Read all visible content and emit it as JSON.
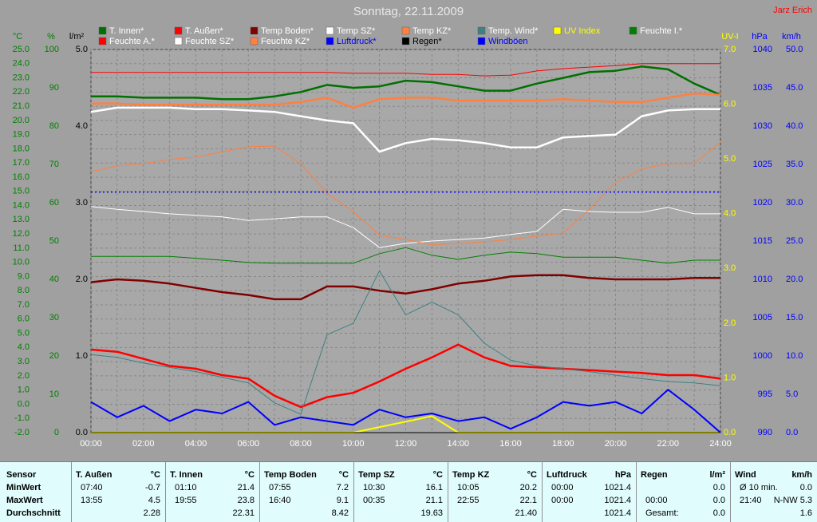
{
  "chart_data": {
    "type": "line",
    "title": "Sonntag, 22.11.2009",
    "author": "Jarz Erich",
    "grid": true,
    "x": [
      "00:00",
      "01:00",
      "02:00",
      "03:00",
      "04:00",
      "05:00",
      "06:00",
      "07:00",
      "08:00",
      "09:00",
      "10:00",
      "11:00",
      "12:00",
      "13:00",
      "14:00",
      "15:00",
      "16:00",
      "17:00",
      "18:00",
      "19:00",
      "20:00",
      "21:00",
      "22:00",
      "23:00",
      "24:00"
    ],
    "axes": {
      "temp": {
        "title": "°C",
        "color": "#008000",
        "ylim": [
          -2,
          25
        ],
        "yticks": [
          {
            "value": -2,
            "label": "-2.0"
          },
          {
            "value": -1,
            "label": "-1.0"
          },
          {
            "value": 0,
            "label": "0.0"
          },
          {
            "value": 1,
            "label": "1.0"
          },
          {
            "value": 2,
            "label": "2.0"
          },
          {
            "value": 3,
            "label": "3.0"
          },
          {
            "value": 4,
            "label": "4.0"
          },
          {
            "value": 5,
            "label": "5.0"
          },
          {
            "value": 6,
            "label": "6.0"
          },
          {
            "value": 7,
            "label": "7.0"
          },
          {
            "value": 8,
            "label": "8.0"
          },
          {
            "value": 9,
            "label": "9.0"
          },
          {
            "value": 10,
            "label": "10.0"
          },
          {
            "value": 11,
            "label": "11.0"
          },
          {
            "value": 12,
            "label": "12.0"
          },
          {
            "value": 13,
            "label": "13.0"
          },
          {
            "value": 14,
            "label": "14.0"
          },
          {
            "value": 15,
            "label": "15.0"
          },
          {
            "value": 16,
            "label": "16.0"
          },
          {
            "value": 17,
            "label": "17.0"
          },
          {
            "value": 18,
            "label": "18.0"
          },
          {
            "value": 19,
            "label": "19.0"
          },
          {
            "value": 20,
            "label": "20.0"
          },
          {
            "value": 21,
            "label": "21.0"
          },
          {
            "value": 22,
            "label": "22.0"
          },
          {
            "value": 23,
            "label": "23.0"
          },
          {
            "value": 24,
            "label": "24.0"
          },
          {
            "value": 25,
            "label": "25.0"
          }
        ]
      },
      "hum": {
        "title": "%",
        "color": "#008000",
        "ylim": [
          0,
          100
        ],
        "yticks": [
          0,
          10,
          20,
          30,
          40,
          50,
          60,
          70,
          80,
          90,
          100
        ]
      },
      "rain": {
        "title": "l/m²",
        "color": "#000000",
        "ylim": [
          0,
          5
        ],
        "yticks": [
          {
            "value": 0,
            "label": "0.0"
          },
          {
            "value": 1,
            "label": "1.0"
          },
          {
            "value": 2,
            "label": "2.0"
          },
          {
            "value": 3,
            "label": "3.0"
          },
          {
            "value": 4,
            "label": "4.0"
          },
          {
            "value": 5,
            "label": "5.0"
          }
        ]
      },
      "uv": {
        "title": "UV-I",
        "color": "#ffff00",
        "ylim": [
          0,
          7
        ],
        "yticks": [
          {
            "value": 0,
            "label": "0.0"
          },
          {
            "value": 1,
            "label": "1.0"
          },
          {
            "value": 2,
            "label": "2.0"
          },
          {
            "value": 3,
            "label": "3.0"
          },
          {
            "value": 4,
            "label": "4.0"
          },
          {
            "value": 5,
            "label": "5.0"
          },
          {
            "value": 6,
            "label": "6.0"
          },
          {
            "value": 7,
            "label": "7.0"
          }
        ]
      },
      "press": {
        "title": "hPa",
        "color": "#0000ff",
        "ylim": [
          990,
          1040
        ],
        "yticks": [
          990,
          995,
          1000,
          1005,
          1010,
          1015,
          1020,
          1025,
          1030,
          1035,
          1040
        ]
      },
      "wind": {
        "title": "km/h",
        "color": "#0000ff",
        "ylim": [
          0,
          50
        ],
        "yticks": [
          {
            "value": 0,
            "label": "0.0"
          },
          {
            "value": 5,
            "label": "5.0"
          },
          {
            "value": 10,
            "label": "10.0"
          },
          {
            "value": 15,
            "label": "15.0"
          },
          {
            "value": 20,
            "label": "20.0"
          },
          {
            "value": 25,
            "label": "25.0"
          },
          {
            "value": 30,
            "label": "30.0"
          },
          {
            "value": 35,
            "label": "35.0"
          },
          {
            "value": 40,
            "label": "40.0"
          },
          {
            "value": 45,
            "label": "45.0"
          },
          {
            "value": 50,
            "label": "50.0"
          }
        ]
      }
    },
    "series": [
      {
        "name": "T. Innen*",
        "color": "#007000",
        "legend_color": "#ffffff",
        "axis": "temp",
        "line_width": 2.5,
        "values": [
          21.7,
          21.7,
          21.6,
          21.6,
          21.6,
          21.5,
          21.5,
          21.7,
          22.0,
          22.5,
          22.3,
          22.4,
          22.8,
          22.7,
          22.4,
          22.1,
          22.1,
          22.6,
          23.0,
          23.4,
          23.5,
          23.8,
          23.6,
          22.6,
          21.8
        ]
      },
      {
        "name": "T. Außen*",
        "color": "#ff0000",
        "legend_color": "#ffffff",
        "axis": "temp",
        "line_width": 2.5,
        "values": [
          3.85,
          3.7,
          3.2,
          2.7,
          2.5,
          2.05,
          1.8,
          0.6,
          -0.2,
          0.5,
          0.8,
          1.6,
          2.5,
          3.3,
          4.2,
          3.3,
          2.7,
          2.6,
          2.5,
          2.4,
          2.3,
          2.2,
          2.05,
          2.05,
          1.8
        ]
      },
      {
        "name": "Temp Boden*",
        "color": "#800000",
        "legend_color": "#ffffff",
        "axis": "temp",
        "line_width": 2.5,
        "values": [
          8.6,
          8.8,
          8.7,
          8.5,
          8.2,
          7.9,
          7.7,
          7.4,
          7.4,
          8.3,
          8.3,
          8.0,
          7.8,
          8.1,
          8.5,
          8.7,
          9.0,
          9.1,
          9.1,
          8.9,
          8.8,
          8.8,
          8.8,
          8.9,
          8.9
        ]
      },
      {
        "name": "Temp SZ*",
        "color": "#ffffff",
        "legend_color": "#ffffff",
        "axis": "temp",
        "line_width": 2.5,
        "values": [
          20.6,
          20.9,
          20.9,
          20.9,
          20.8,
          20.8,
          20.7,
          20.6,
          20.3,
          20.0,
          19.8,
          17.8,
          18.4,
          18.7,
          18.6,
          18.4,
          18.1,
          18.1,
          18.8,
          18.9,
          19.0,
          20.3,
          20.7,
          20.8,
          20.8
        ]
      },
      {
        "name": "Temp KZ*",
        "color": "#ff8040",
        "legend_color": "#ffffff",
        "axis": "temp",
        "line_width": 2.5,
        "values": [
          21.2,
          21.2,
          21.1,
          21.1,
          21.1,
          21.1,
          21.1,
          21.1,
          21.3,
          21.6,
          20.9,
          21.5,
          21.6,
          21.6,
          21.4,
          21.4,
          21.4,
          21.4,
          21.5,
          21.4,
          21.3,
          21.3,
          21.6,
          21.9,
          21.8
        ]
      },
      {
        "name": "Temp. Wind*",
        "color": "#408080",
        "legend_color": "#ffffff",
        "axis": "temp",
        "line_width": 1,
        "values": [
          3.5,
          3.3,
          2.9,
          2.6,
          2.3,
          1.9,
          1.5,
          0.1,
          -0.7,
          4.9,
          5.7,
          9.4,
          6.3,
          7.2,
          6.3,
          4.3,
          3.1,
          2.7,
          2.5,
          2.3,
          2.05,
          1.8,
          1.6,
          1.5,
          1.3
        ]
      },
      {
        "name": "UV Index",
        "color": "#ffff00",
        "legend_color": "#ffff00",
        "axis": "uv",
        "line_width": 2,
        "values": [
          0,
          0,
          0,
          0,
          0,
          0,
          0,
          0,
          0,
          0,
          0,
          0.1,
          0.2,
          0.3,
          0,
          0,
          0,
          0,
          0,
          0,
          0,
          0,
          0,
          0,
          0
        ]
      },
      {
        "name": "Feuchte I.*",
        "color": "#008000",
        "legend_color": "#ffffff",
        "axis": "hum",
        "line_width": 1,
        "values": [
          46.0,
          46.0,
          46.0,
          46.0,
          45.5,
          45.0,
          44.4,
          44.2,
          44.2,
          44.2,
          44.2,
          46.7,
          48.3,
          46.3,
          45.2,
          46.3,
          47.1,
          46.7,
          45.8,
          45.8,
          45.8,
          45.0,
          44.2,
          45.0,
          45.0
        ]
      },
      {
        "name": "Feuchte A.*",
        "color": "#ff0000",
        "legend_color": "#ffffff",
        "axis": "hum",
        "line_width": 1,
        "values": [
          94.0,
          94.0,
          94.0,
          94.0,
          94.0,
          94.0,
          94.0,
          94.0,
          94.0,
          94.0,
          93.8,
          93.8,
          93.8,
          93.5,
          93.5,
          93.1,
          93.3,
          94.4,
          95.0,
          95.4,
          95.8,
          96.3,
          96.3,
          96.3,
          96.3
        ]
      },
      {
        "name": "Feuchte SZ*",
        "color": "#ffffff",
        "legend_color": "#ffffff",
        "axis": "hum",
        "line_width": 1,
        "values": [
          59.0,
          58.3,
          57.7,
          57.1,
          56.7,
          56.3,
          55.4,
          55.8,
          56.3,
          56.3,
          53.5,
          48.3,
          49.4,
          50.0,
          50.4,
          50.8,
          51.7,
          52.5,
          58.3,
          57.7,
          57.5,
          57.5,
          58.8,
          57.1,
          57.1
        ]
      },
      {
        "name": "Feuchte KZ*",
        "color": "#ff8040",
        "legend_color": "#ffffff",
        "axis": "hum",
        "line_width": 1,
        "values": [
          68.1,
          69.6,
          70.2,
          71.3,
          71.9,
          73.3,
          74.6,
          74.8,
          70.2,
          62.5,
          57.7,
          51.5,
          50.4,
          49.0,
          49.4,
          49.8,
          50.4,
          51.3,
          52.1,
          58.3,
          65.4,
          68.8,
          70.2,
          70.2,
          75.8
        ]
      },
      {
        "name": "Luftdruck*",
        "color": "#0000ff",
        "legend_color": "#0000ff",
        "axis": "press",
        "line_width": 1.5,
        "dashed": true,
        "values": [
          1021.4,
          1021.4,
          1021.4,
          1021.4,
          1021.4,
          1021.4,
          1021.4,
          1021.4,
          1021.4,
          1021.4,
          1021.4,
          1021.4,
          1021.4,
          1021.4,
          1021.4,
          1021.4,
          1021.4,
          1021.4,
          1021.4,
          1021.4,
          1021.4,
          1021.4,
          1021.4,
          1021.4,
          1021.4
        ]
      },
      {
        "name": "Regen*",
        "color": "#000000",
        "legend_color": "#000000",
        "axis": "rain",
        "line_width": 1,
        "values": [
          0,
          0,
          0,
          0,
          0,
          0,
          0,
          0,
          0,
          0,
          0,
          0,
          0,
          0,
          0,
          0,
          0,
          0,
          0,
          0,
          0,
          0,
          0,
          0,
          0
        ]
      },
      {
        "name": "Windböen",
        "color": "#0000ff",
        "legend_color": "#0000ff",
        "axis": "wind",
        "line_width": 2,
        "values": [
          4.0,
          2.0,
          3.5,
          1.5,
          3.0,
          2.5,
          4.0,
          1.0,
          2.0,
          1.5,
          1.0,
          3.0,
          2.0,
          2.5,
          1.5,
          2.0,
          0.5,
          2.0,
          4.0,
          3.5,
          4.0,
          2.5,
          5.6,
          3.0,
          0
        ]
      }
    ]
  },
  "table": {
    "header": "Sensor",
    "row_labels": [
      "MinWert",
      "MaxWert",
      "Durchschnitt"
    ],
    "columns": [
      {
        "name": "T. Außen",
        "unit": "°C",
        "rows": [
          [
            "07:40",
            "-0.7"
          ],
          [
            "13:55",
            "4.5"
          ],
          [
            null,
            "2.28"
          ]
        ]
      },
      {
        "name": "T. Innen",
        "unit": "°C",
        "rows": [
          [
            "01:10",
            "21.4"
          ],
          [
            "19:55",
            "23.8"
          ],
          [
            null,
            "22.31"
          ]
        ]
      },
      {
        "name": "Temp Boden",
        "unit": "°C",
        "rows": [
          [
            "07:55",
            "7.2"
          ],
          [
            "16:40",
            "9.1"
          ],
          [
            null,
            "8.42"
          ]
        ]
      },
      {
        "name": "Temp SZ",
        "unit": "°C",
        "rows": [
          [
            "10:30",
            "16.1"
          ],
          [
            "00:35",
            "21.1"
          ],
          [
            null,
            "19.63"
          ]
        ]
      },
      {
        "name": "Temp KZ",
        "unit": "°C",
        "rows": [
          [
            "10:05",
            "20.2"
          ],
          [
            "22:55",
            "22.1"
          ],
          [
            null,
            "21.40"
          ]
        ]
      },
      {
        "name": "Luftdruck",
        "unit": "hPa",
        "rows": [
          [
            "00:00",
            "1021.4"
          ],
          [
            "00:00",
            "1021.4"
          ],
          [
            null,
            "1021.4"
          ]
        ]
      },
      {
        "name": "Regen",
        "unit": "l/m²",
        "rows": [
          [
            null,
            "0.0"
          ],
          [
            "00:00",
            "0.0"
          ],
          [
            "Gesamt:",
            "0.0"
          ]
        ]
      },
      {
        "name": "Wind",
        "unit": "km/h",
        "rows": [
          [
            "Ø 10 min.",
            "0.0"
          ],
          [
            "21:40",
            "N-NW 5.3"
          ],
          [
            null,
            "1.6"
          ]
        ]
      }
    ]
  }
}
